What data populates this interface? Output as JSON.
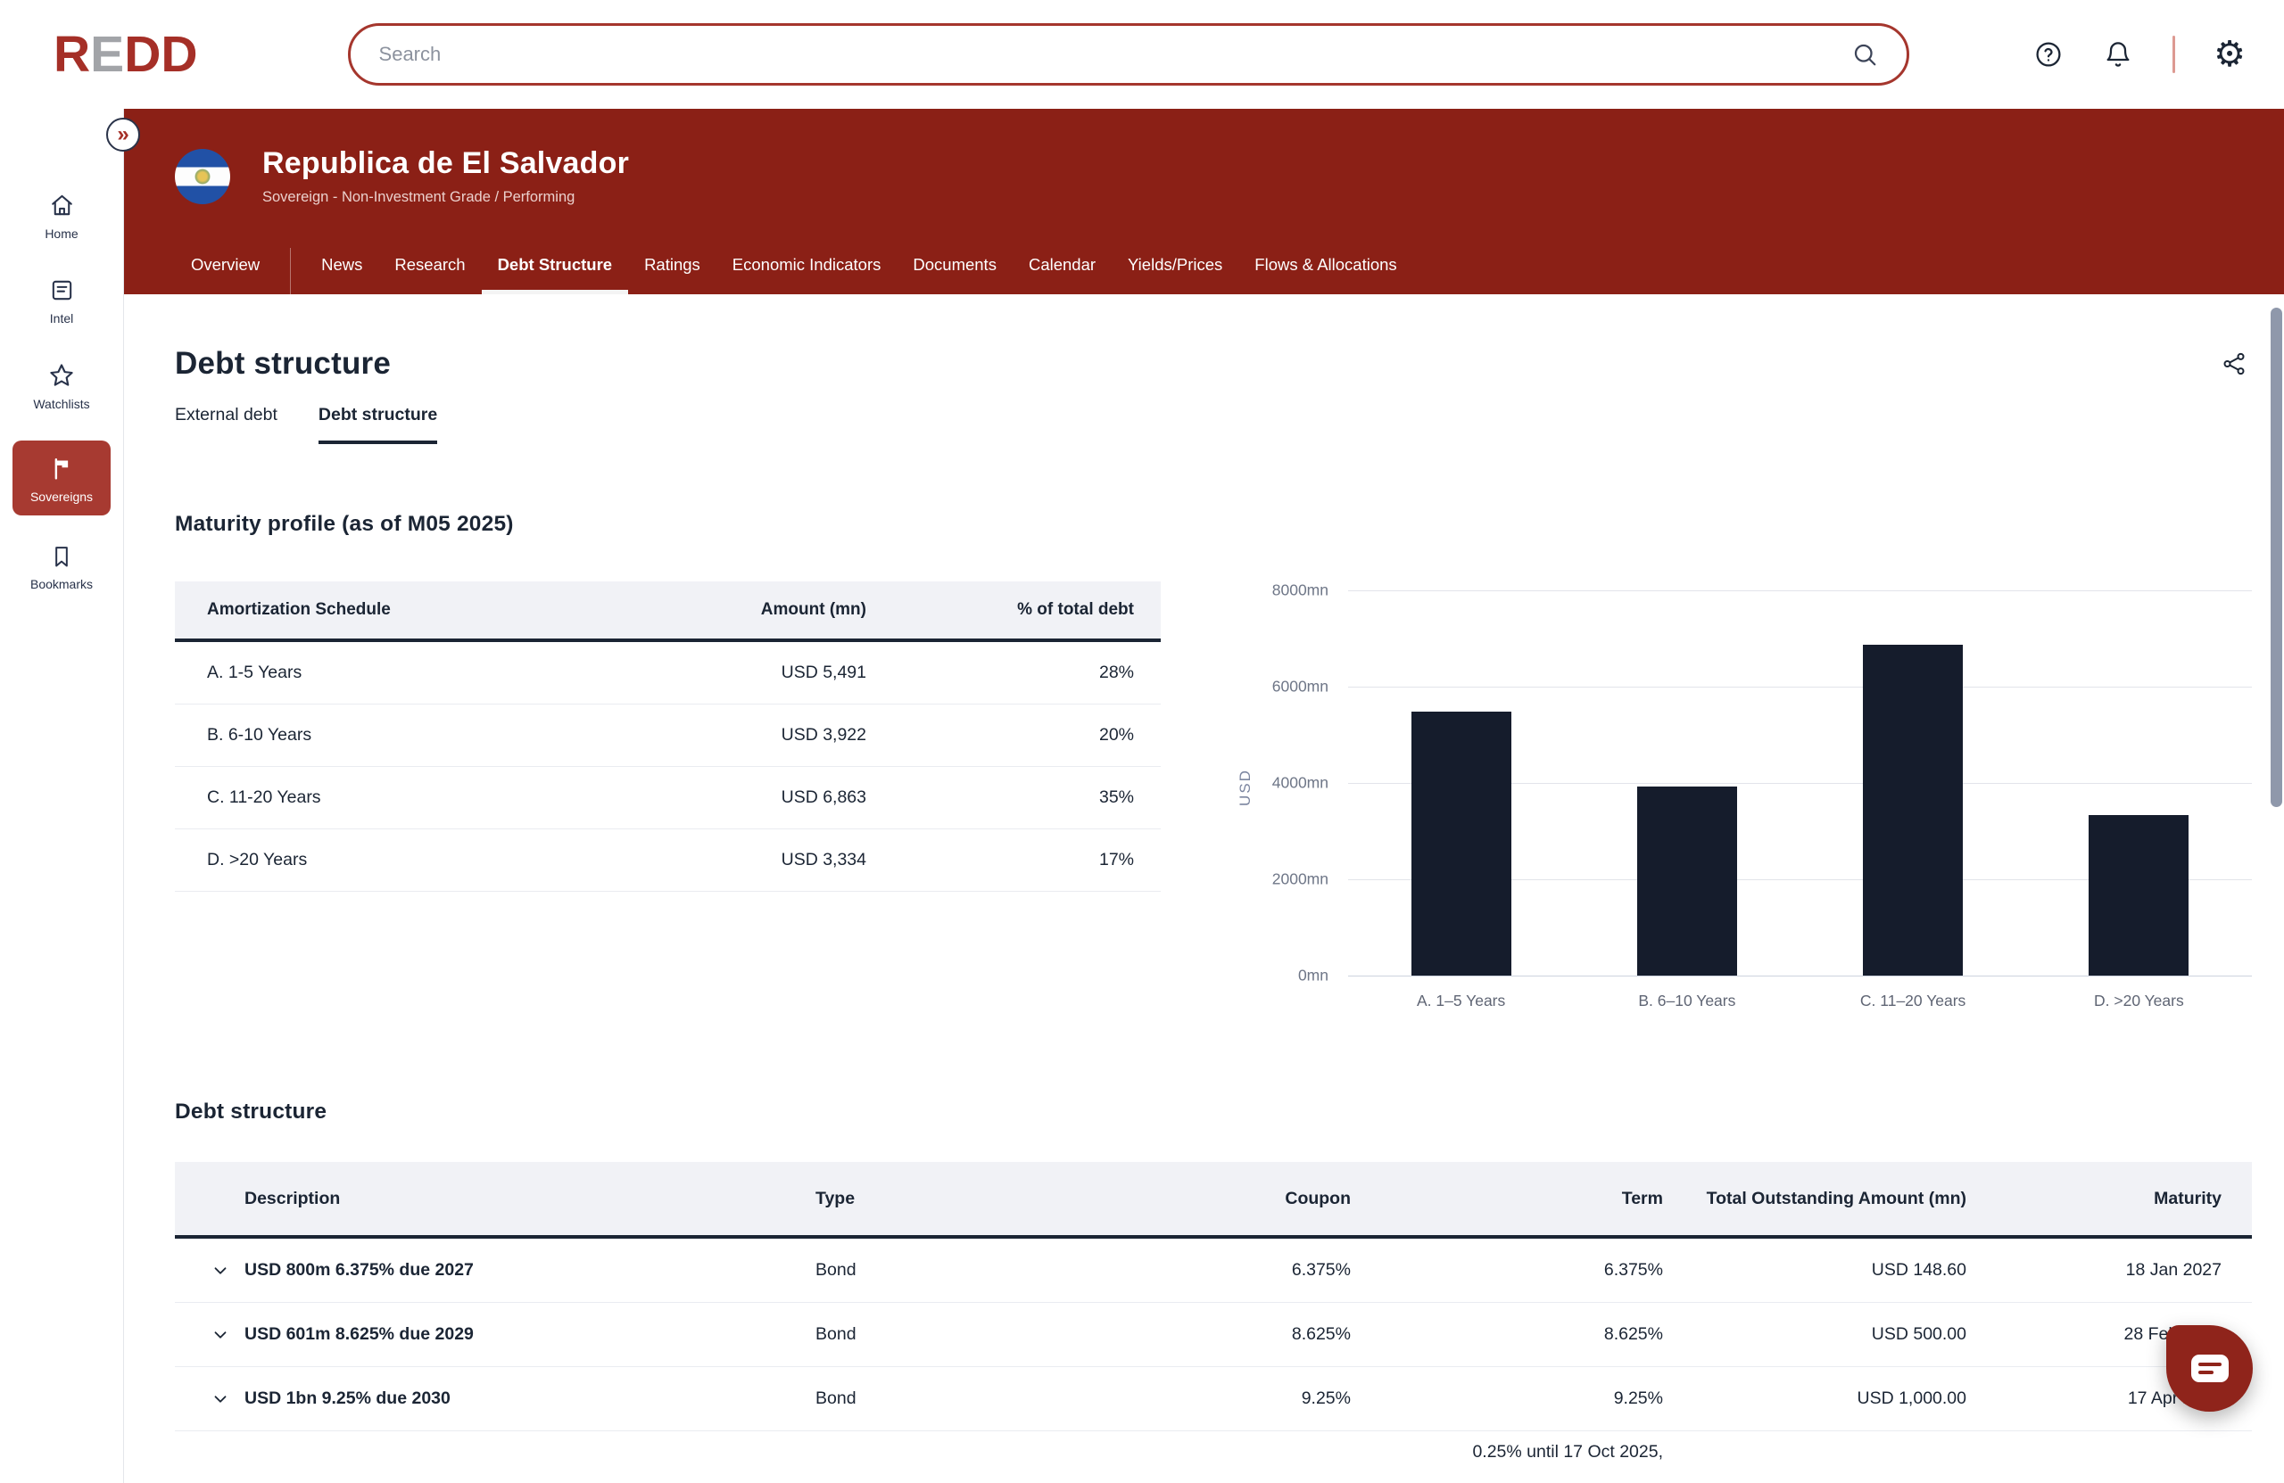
{
  "brand": {
    "r": "R",
    "e": "E",
    "dd": "DD",
    "red": "#A52F27",
    "gray": "#A2A4A8"
  },
  "topbar": {
    "search": {
      "placeholder": "Search"
    },
    "icons": {
      "help": "help-icon",
      "notifications": "bell-icon",
      "settings": "gear-icon",
      "settings_glyph": "⚙"
    }
  },
  "sidebar": {
    "collapse_glyph": "»",
    "items": [
      {
        "label": "Home",
        "icon": "home-icon",
        "active": false
      },
      {
        "label": "Intel",
        "icon": "intel-document-icon",
        "active": false
      },
      {
        "label": "Watchlists",
        "icon": "star-icon",
        "active": false
      },
      {
        "label": "Sovereigns",
        "icon": "flag-icon",
        "active": true
      },
      {
        "label": "Bookmarks",
        "icon": "bookmark-icon",
        "active": false
      }
    ],
    "active_color": "#A73A31"
  },
  "entity": {
    "name": "Republica de El Salvador",
    "subtitle": "Sovereign - Non-Investment Grade / Performing",
    "flag": "el-salvador-flag",
    "band_color": "#8B2016"
  },
  "nav": {
    "tabs": [
      {
        "label": "Overview"
      },
      {
        "label": "News"
      },
      {
        "label": "Research"
      },
      {
        "label": "Debt Structure",
        "active": true
      },
      {
        "label": "Ratings"
      },
      {
        "label": "Economic Indicators"
      },
      {
        "label": "Documents"
      },
      {
        "label": "Calendar"
      },
      {
        "label": "Yields/Prices"
      },
      {
        "label": "Flows & Allocations"
      }
    ]
  },
  "page": {
    "title": "Debt structure"
  },
  "subtabs": [
    {
      "label": "External debt",
      "active": false
    },
    {
      "label": "Debt structure",
      "active": true
    }
  ],
  "maturity": {
    "heading": "Maturity profile (as of M05 2025)",
    "table": {
      "headers": [
        "Amortization Schedule",
        "Amount (mn)",
        "% of total debt"
      ],
      "rows": [
        {
          "label": "A. 1-5 Years",
          "amount": "USD 5,491",
          "pct": "28%"
        },
        {
          "label": "B. 6-10 Years",
          "amount": "USD 3,922",
          "pct": "20%"
        },
        {
          "label": "C. 11-20 Years",
          "amount": "USD 6,863",
          "pct": "35%"
        },
        {
          "label": "D. >20 Years",
          "amount": "USD 3,334",
          "pct": "17%"
        }
      ]
    }
  },
  "chart_data": {
    "type": "bar",
    "title": "",
    "categories": [
      "A. 1–5 Years",
      "B. 6–10 Years",
      "C. 11–20 Years",
      "D. >20 Years"
    ],
    "values": [
      5491,
      3922,
      6863,
      3334
    ],
    "xlabel": "",
    "ylabel": "USD",
    "ylim": [
      0,
      8000
    ],
    "y_ticks": [
      "8000mn",
      "6000mn",
      "4000mn",
      "2000mn",
      "0mn"
    ],
    "bar_color": "#151C2C",
    "grid": true,
    "legend": false
  },
  "debt": {
    "heading": "Debt structure",
    "headers": [
      "Description",
      "Type",
      "Coupon",
      "Term",
      "Total Outstanding Amount (mn)",
      "Maturity"
    ],
    "rows": [
      {
        "description": "USD 800m 6.375% due 2027",
        "type": "Bond",
        "coupon": "6.375%",
        "term": "6.375%",
        "total": "USD 148.60",
        "maturity": "18 Jan 2027"
      },
      {
        "description": "USD 601m 8.625% due 2029",
        "type": "Bond",
        "coupon": "8.625%",
        "term": "8.625%",
        "total": "USD 500.00",
        "maturity": "28 Feb 2029"
      },
      {
        "description": "USD 1bn 9.25% due 2030",
        "type": "Bond",
        "coupon": "9.25%",
        "term": "9.25%",
        "total": "USD 1,000.00",
        "maturity": "17 Apr 2030"
      },
      {
        "description": "",
        "type": "",
        "coupon": "",
        "term": "0.25% until 17 Oct 2025,",
        "total": "",
        "maturity": ""
      }
    ]
  },
  "colors": {
    "band_red": "#8B2016",
    "accent_red": "#A5362D",
    "navy_text": "#1B2534",
    "bar_navy": "#151C2C",
    "table_header_bg": "#F1F2F6",
    "scrollbar": "#8F98AB"
  }
}
